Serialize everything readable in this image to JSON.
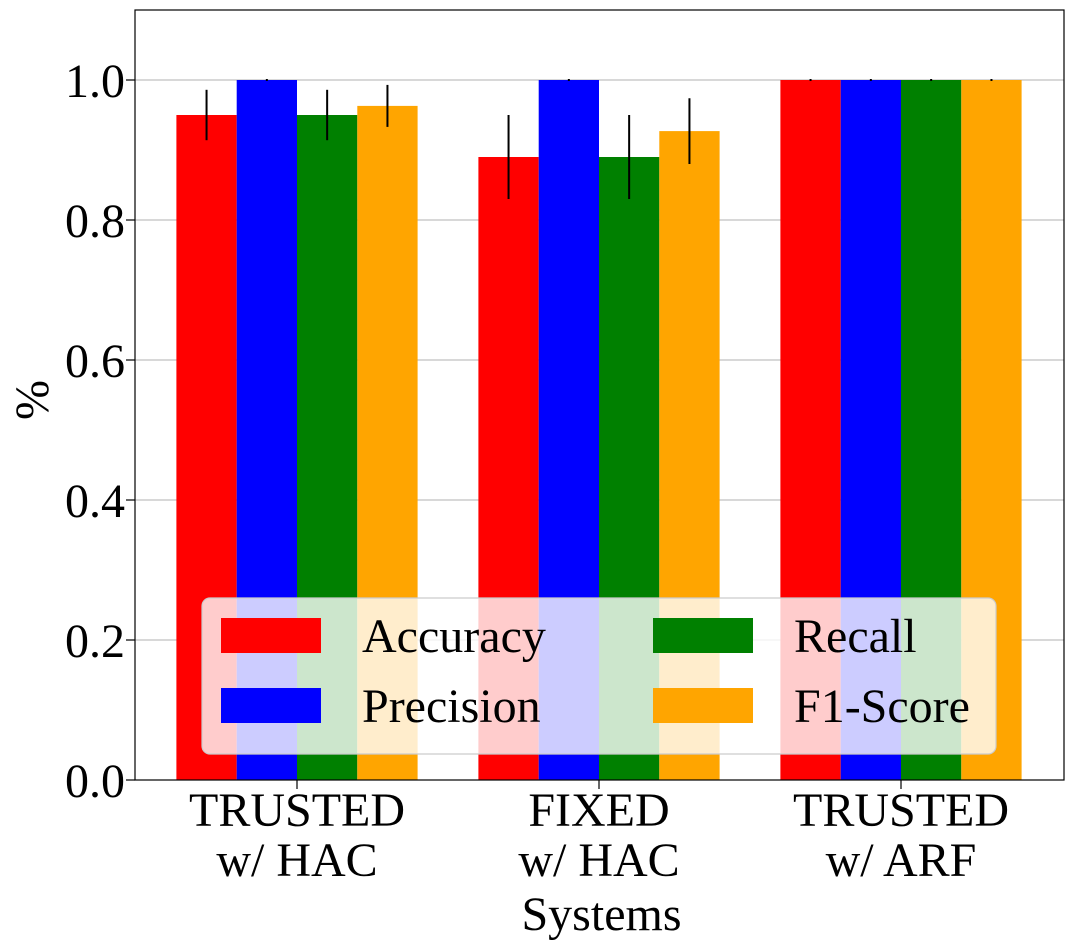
{
  "chart_data": {
    "type": "bar",
    "title": "",
    "xlabel": "Systems",
    "ylabel": "%",
    "ylim": [
      0,
      1.1
    ],
    "yticks": [
      0.0,
      0.2,
      0.4,
      0.6,
      0.8,
      1.0
    ],
    "ytick_labels": [
      "0.0",
      "0.2",
      "0.4",
      "0.6",
      "0.8",
      "1.0"
    ],
    "grid": "horizontal",
    "legend_position": "lower-center",
    "legend_columns": 2,
    "categories": [
      [
        "TRUSTED",
        "w/ HAC"
      ],
      [
        "FIXED",
        "w/ HAC"
      ],
      [
        "TRUSTED",
        "w/ ARF"
      ]
    ],
    "series": [
      {
        "name": "Accuracy",
        "color": "#ff0000",
        "values": [
          0.95,
          0.89,
          1.0
        ],
        "errors": [
          0.036,
          0.06,
          0.0
        ]
      },
      {
        "name": "Precision",
        "color": "#0000ff",
        "values": [
          1.0,
          1.0,
          1.0
        ],
        "errors": [
          0.0,
          0.0,
          0.0
        ]
      },
      {
        "name": "Recall",
        "color": "#008000",
        "values": [
          0.95,
          0.89,
          1.0
        ],
        "errors": [
          0.036,
          0.06,
          0.0
        ]
      },
      {
        "name": "F1-Score",
        "color": "#ffa500",
        "values": [
          0.963,
          0.927,
          1.0
        ],
        "errors": [
          0.03,
          0.047,
          0.0
        ]
      }
    ]
  }
}
